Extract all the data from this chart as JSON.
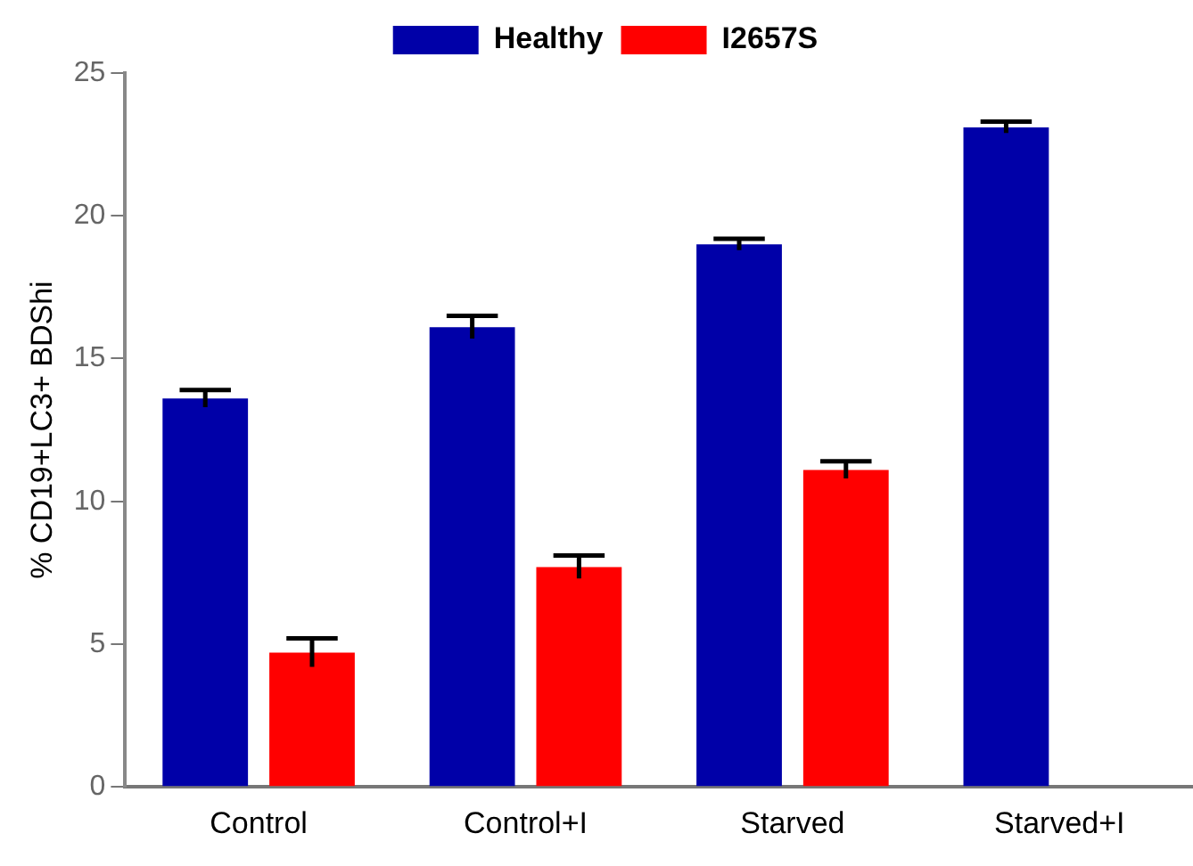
{
  "chart_data": {
    "type": "bar",
    "ylabel": "% CD19+LC3+ BDShi",
    "categories": [
      "Control",
      "Control+I",
      "Starved",
      "Starved+I"
    ],
    "series": [
      {
        "name": "Healthy",
        "color": "#0000a8",
        "values": [
          13.6,
          16.1,
          19.0,
          23.1
        ],
        "errors": [
          0.3,
          0.4,
          0.2,
          0.2
        ]
      },
      {
        "name": "I2657S",
        "color": "#ff0000",
        "values": [
          4.7,
          7.7,
          11.1,
          null
        ],
        "errors": [
          0.5,
          0.4,
          0.3,
          null
        ]
      }
    ],
    "ylim": [
      0,
      25
    ],
    "yticks": [
      0,
      5,
      10,
      15,
      20,
      25
    ],
    "grid": false,
    "legend": "top"
  }
}
